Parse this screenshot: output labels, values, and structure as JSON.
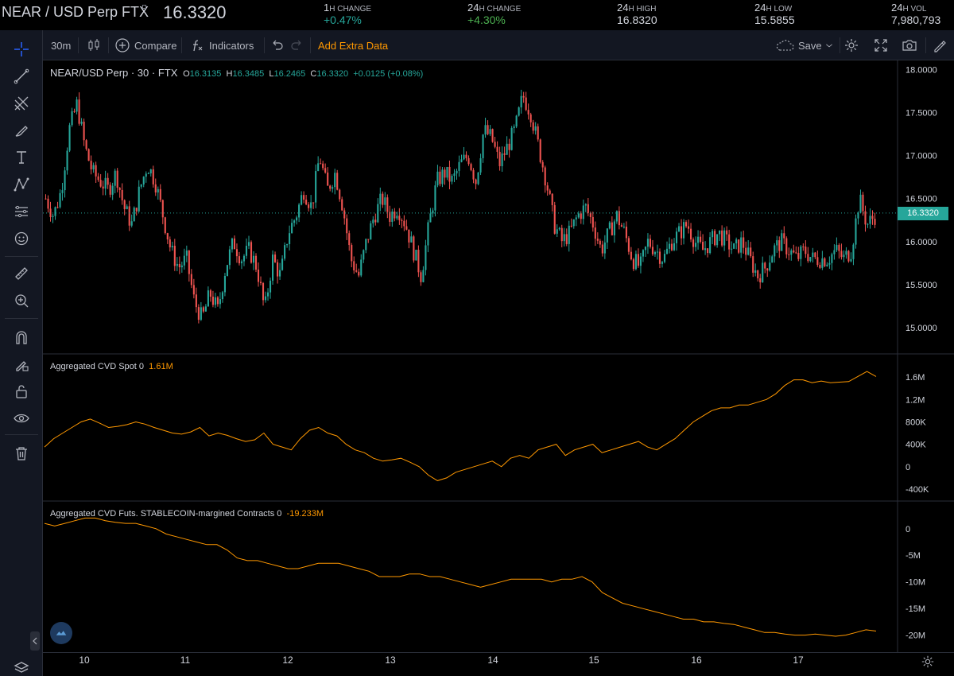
{
  "ticker": {
    "symbol": "NEAR / USD Perp FTX",
    "price": "16.3320",
    "stats": [
      {
        "num": "1",
        "unit": "H CHANGE",
        "value": "+0.47%"
      },
      {
        "num": "24",
        "unit": "H CHANGE",
        "value": "+4.30%"
      },
      {
        "num": "24",
        "unit": "H HIGH",
        "value": "16.8320"
      },
      {
        "num": "24",
        "unit": "H LOW",
        "value": "15.5855"
      },
      {
        "num": "24",
        "unit": "H VOL",
        "value": "7,980,793"
      }
    ]
  },
  "toolbar": {
    "interval": "30m",
    "compare_label": "Compare",
    "indicators_label": "Indicators",
    "extra_data_label": "Add Extra Data",
    "save_label": "Save"
  },
  "legend": {
    "title": "NEAR/USD Perp · 30 · FTX",
    "o_key": "O",
    "o_val": "16.3135",
    "h_key": "H",
    "h_val": "16.3485",
    "l_key": "L",
    "l_val": "16.2465",
    "c_key": "C",
    "c_val": "16.3320",
    "change": "+0.0125 (+0.08%)"
  },
  "last_price_tag": "16.3320",
  "pane2": {
    "title": "Aggregated CVD Spot 0",
    "value": "1.61M"
  },
  "pane3": {
    "title": "Aggregated CVD Futs. STABLECOIN-margined Contracts 0",
    "value": "-19.233M"
  },
  "colors": {
    "up": "#26a69a",
    "down": "#ef5350",
    "cvd": "#ff9800",
    "bg": "#000000",
    "panel": "#131722"
  },
  "chart_data": [
    {
      "type": "candlestick",
      "title": "NEAR/USD Perp · 30 · FTX",
      "y_ticks": [
        "18.0000",
        "17.5000",
        "17.0000",
        "16.5000",
        "16.0000",
        "15.5000",
        "15.0000"
      ],
      "ylim": [
        14.75,
        18.05
      ],
      "x_ticks": [
        "10",
        "11",
        "12",
        "13",
        "14",
        "15",
        "16",
        "17"
      ],
      "close_path": [
        16.5,
        16.3,
        16.6,
        17.3,
        17.6,
        17.1,
        16.8,
        16.7,
        16.6,
        16.8,
        16.4,
        16.2,
        16.6,
        16.9,
        16.7,
        16.3,
        15.9,
        15.7,
        15.8,
        15.3,
        15.1,
        15.4,
        15.2,
        15.7,
        16.0,
        15.8,
        15.9,
        15.7,
        15.2,
        15.8,
        15.6,
        16.1,
        16.3,
        16.6,
        16.4,
        17.0,
        16.6,
        16.8,
        16.4,
        15.8,
        15.6,
        16.0,
        16.3,
        16.5,
        16.3,
        16.4,
        16.2,
        15.9,
        15.6,
        16.2,
        16.7,
        16.8,
        16.7,
        16.9,
        17.0,
        16.7,
        17.3,
        17.2,
        16.9,
        17.1,
        17.3,
        17.7,
        17.5,
        17.1,
        16.7,
        16.2,
        16.0,
        16.1,
        16.3,
        16.4,
        16.2,
        15.9,
        16.1,
        16.3,
        16.1,
        15.8,
        15.7,
        16.0,
        15.9,
        15.8,
        16.0,
        16.1,
        16.2,
        16.0,
        15.9,
        16.0,
        16.1,
        16.0,
        15.9,
        16.0,
        15.8,
        15.6,
        15.7,
        15.9,
        16.0,
        15.9,
        15.8,
        15.9,
        15.8,
        15.8,
        15.8,
        15.9,
        15.8,
        15.9,
        16.5,
        16.2,
        16.3
      ]
    },
    {
      "type": "line",
      "title": "Aggregated CVD Spot 0",
      "y_ticks": [
        "1.6M",
        "1.2M",
        "800K",
        "400K",
        "0",
        "-400K"
      ],
      "ylim": [
        -500,
        1900
      ],
      "values": [
        350,
        500,
        600,
        700,
        800,
        850,
        780,
        700,
        720,
        750,
        800,
        760,
        700,
        650,
        600,
        580,
        620,
        700,
        550,
        600,
        560,
        500,
        450,
        480,
        600,
        400,
        350,
        300,
        500,
        650,
        700,
        600,
        550,
        400,
        300,
        250,
        150,
        100,
        120,
        150,
        80,
        0,
        -150,
        -250,
        -200,
        -100,
        -50,
        0,
        50,
        100,
        0,
        150,
        200,
        150,
        300,
        350,
        400,
        200,
        300,
        350,
        400,
        250,
        300,
        350,
        400,
        450,
        350,
        300,
        400,
        500,
        650,
        800,
        900,
        1000,
        1050,
        1050,
        1100,
        1100,
        1150,
        1200,
        1300,
        1450,
        1550,
        1550,
        1500,
        1530,
        1500,
        1510,
        1520,
        1610,
        1700,
        1610
      ]
    },
    {
      "type": "line",
      "title": "Aggregated CVD Futs. STABLECOIN-margined Contracts 0",
      "y_ticks": [
        "0",
        "-5M",
        "-10M",
        "-15M",
        "-20M"
      ],
      "ylim": [
        -22,
        4
      ],
      "values": [
        1,
        0.5,
        1,
        1.5,
        2,
        2,
        1.5,
        1.2,
        1,
        1,
        0.5,
        0,
        -1,
        -1.5,
        -2,
        -2.5,
        -3,
        -3,
        -4,
        -5.5,
        -6,
        -6,
        -6.5,
        -7,
        -7.5,
        -7.5,
        -7,
        -6.5,
        -6.5,
        -6.5,
        -7,
        -7.5,
        -8,
        -9,
        -9,
        -9,
        -8.5,
        -8.5,
        -9,
        -9,
        -9.5,
        -10,
        -10.5,
        -11,
        -10.5,
        -10,
        -9.5,
        -9.5,
        -9.5,
        -9.5,
        -10,
        -9.5,
        -9.5,
        -9,
        -10,
        -12,
        -13,
        -14,
        -14.5,
        -15,
        -15.5,
        -16,
        -16.5,
        -17,
        -17,
        -17.5,
        -17.5,
        -17.8,
        -18,
        -18.5,
        -19,
        -19.5,
        -19.5,
        -19.8,
        -20,
        -20,
        -19.8,
        -20,
        -20.2,
        -20,
        -19.5,
        -19,
        -19.233
      ]
    }
  ]
}
